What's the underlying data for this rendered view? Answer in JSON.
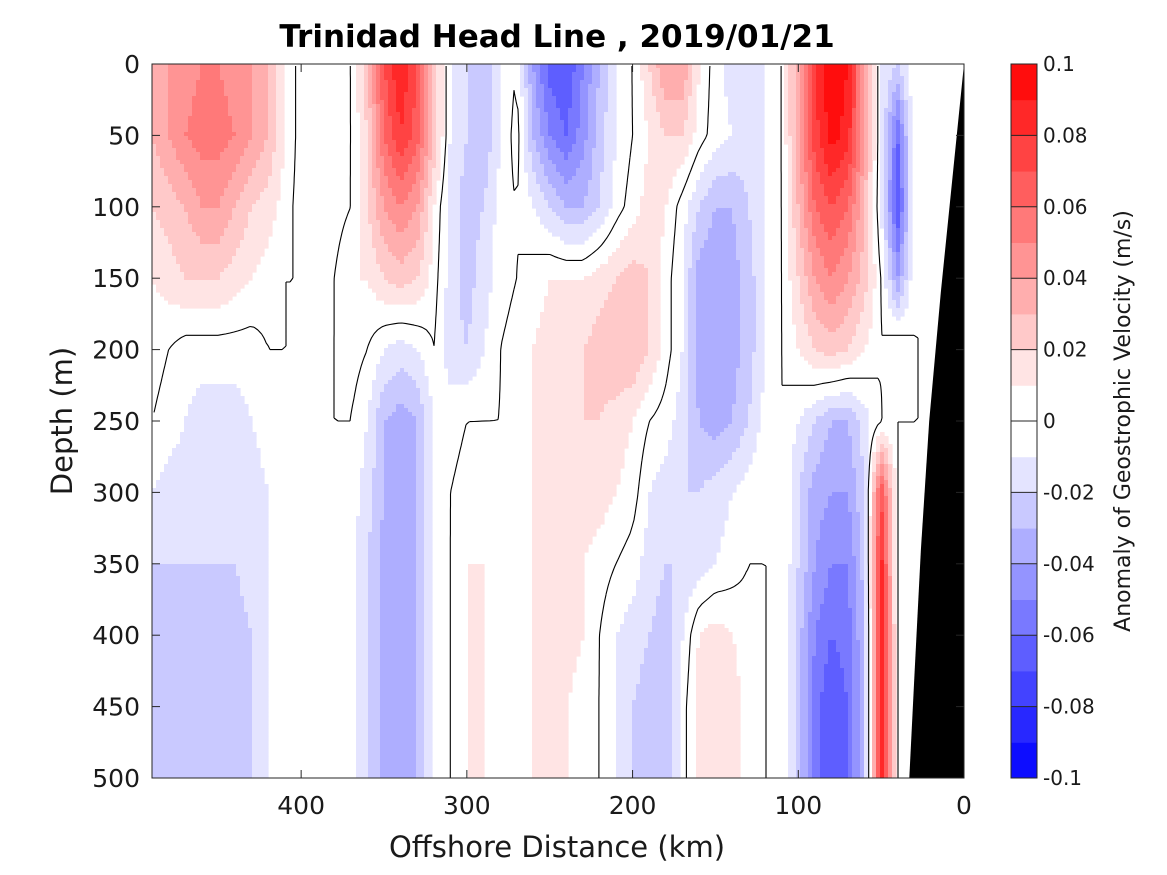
{
  "chart_data": {
    "type": "heatmap",
    "title": "Trinidad Head Line , 2019/01/21",
    "xlabel": "Offshore Distance (km)",
    "ylabel": "Depth (m)",
    "colorbar_label": "Anomaly of Geostrophic Velocity (m/s)",
    "xlim": [
      490,
      0
    ],
    "ylim": [
      0,
      500
    ],
    "x_reversed": true,
    "y_reversed": true,
    "x_ticks": [
      400,
      300,
      200,
      100,
      0
    ],
    "y_ticks": [
      0,
      50,
      100,
      150,
      200,
      250,
      300,
      350,
      400,
      450,
      500
    ],
    "colorbar_ticks": [
      "0.1",
      "0.08",
      "0.06",
      "0.04",
      "0.02",
      "0",
      "-0.02",
      "-0.04",
      "-0.06",
      "-0.08",
      "-0.1"
    ],
    "colorbar_range": [
      -0.1,
      0.1
    ],
    "contour_levels": 20,
    "zero_contour_color": "#000000",
    "bathymetry_color": "#000000",
    "positive_color": "#ff0000",
    "negative_color": "#0000ff",
    "x_grid": [
      490,
      480,
      470,
      460,
      450,
      440,
      430,
      420,
      410,
      400,
      390,
      380,
      370,
      360,
      350,
      340,
      330,
      320,
      310,
      300,
      290,
      280,
      270,
      260,
      250,
      240,
      230,
      220,
      210,
      200,
      190,
      180,
      170,
      160,
      150,
      140,
      130,
      120,
      110,
      100,
      90,
      80,
      70,
      60,
      50,
      40,
      30,
      20,
      10,
      0
    ],
    "depth_grid": [
      0,
      50,
      100,
      150,
      200,
      250,
      300,
      350,
      400,
      450,
      500
    ],
    "velocity_grid": [
      [
        0.03,
        0.04,
        0.045,
        0.05,
        0.05,
        0.045,
        0.04,
        0.03,
        0.01,
        -0.005,
        -0.005,
        -0.01,
        0.0,
        0.03,
        0.07,
        0.09,
        0.07,
        0.03,
        -0.01,
        -0.02,
        -0.03,
        -0.01,
        0.0,
        -0.04,
        -0.065,
        -0.07,
        -0.05,
        -0.03,
        -0.01,
        0.0,
        0.02,
        0.04,
        0.04,
        0.01,
        -0.005,
        -0.015,
        -0.02,
        -0.01,
        0.0,
        0.04,
        0.08,
        0.1,
        0.09,
        0.04,
        -0.01,
        -0.02,
        0.0,
        0.0,
        0.0,
        0.0
      ],
      [
        0.03,
        0.04,
        0.05,
        0.055,
        0.055,
        0.05,
        0.04,
        0.03,
        0.01,
        -0.005,
        -0.01,
        -0.01,
        0.0,
        0.02,
        0.06,
        0.08,
        0.065,
        0.03,
        -0.01,
        -0.02,
        -0.03,
        -0.01,
        0.005,
        -0.03,
        -0.05,
        -0.06,
        -0.045,
        -0.025,
        -0.01,
        0.0,
        0.01,
        0.02,
        0.02,
        0.005,
        -0.005,
        -0.01,
        -0.015,
        -0.01,
        0.0,
        0.04,
        0.075,
        0.095,
        0.085,
        0.04,
        -0.01,
        -0.06,
        0.0,
        0.0,
        0.0,
        0.0
      ],
      [
        0.02,
        0.025,
        0.03,
        0.04,
        0.04,
        0.03,
        0.02,
        0.015,
        0.005,
        -0.005,
        -0.01,
        -0.005,
        0.0,
        0.02,
        0.04,
        0.05,
        0.04,
        0.01,
        -0.015,
        -0.025,
        -0.02,
        -0.005,
        0.0,
        -0.01,
        -0.02,
        -0.03,
        -0.03,
        -0.02,
        -0.005,
        0.005,
        0.015,
        0.01,
        -0.005,
        -0.02,
        -0.03,
        -0.03,
        -0.02,
        -0.01,
        0.0,
        0.03,
        0.06,
        0.07,
        0.06,
        0.03,
        -0.01,
        -0.07,
        0.0,
        0.0,
        0.0,
        0.0
      ],
      [
        0.01,
        0.015,
        0.02,
        0.02,
        0.02,
        0.015,
        0.01,
        0.005,
        0.0,
        0.0,
        -0.005,
        0.0,
        0.01,
        0.01,
        0.02,
        0.025,
        0.02,
        0.005,
        -0.015,
        -0.025,
        -0.015,
        -0.005,
        0.0,
        0.005,
        0.01,
        0.01,
        0.01,
        0.015,
        0.02,
        0.025,
        0.02,
        0.005,
        -0.01,
        -0.035,
        -0.04,
        -0.035,
        -0.025,
        -0.01,
        0.0,
        0.02,
        0.04,
        0.05,
        0.04,
        0.025,
        0.0,
        -0.04,
        0.0,
        0.0,
        0.0,
        0.0
      ],
      [
        0.005,
        0.0,
        -0.005,
        -0.005,
        -0.005,
        -0.005,
        -0.005,
        0.0,
        0.0,
        0.0,
        0.0,
        0.0,
        0.005,
        0.0,
        -0.01,
        -0.015,
        -0.01,
        0.0,
        -0.015,
        -0.02,
        -0.01,
        0.0,
        0.005,
        0.01,
        0.015,
        0.015,
        0.02,
        0.025,
        0.03,
        0.03,
        0.02,
        0.005,
        -0.01,
        -0.035,
        -0.04,
        -0.035,
        -0.025,
        -0.01,
        0.0,
        0.01,
        0.02,
        0.025,
        0.02,
        0.01,
        0.0,
        0.01,
        0.0,
        0.0,
        0.0,
        0.0
      ],
      [
        0.0,
        -0.005,
        -0.01,
        -0.015,
        -0.015,
        -0.015,
        -0.01,
        -0.005,
        0.0,
        0.0,
        0.0,
        0.0,
        0.0,
        -0.01,
        -0.03,
        -0.035,
        -0.03,
        -0.01,
        -0.005,
        0.0,
        0.0,
        0.0,
        0.005,
        0.01,
        0.015,
        0.02,
        0.02,
        0.02,
        0.015,
        0.01,
        0.0,
        -0.005,
        -0.015,
        -0.03,
        -0.035,
        -0.03,
        -0.02,
        -0.005,
        0.0,
        -0.01,
        -0.02,
        -0.03,
        -0.03,
        -0.015,
        0.0,
        0.0,
        0.0,
        0.0,
        0.0,
        0.0
      ],
      [
        -0.01,
        -0.015,
        -0.015,
        -0.015,
        -0.015,
        -0.015,
        -0.015,
        -0.01,
        0.0,
        0.0,
        0.0,
        0.0,
        -0.005,
        -0.015,
        -0.03,
        -0.035,
        -0.03,
        -0.01,
        0.0,
        0.005,
        0.01,
        0.005,
        0.005,
        0.01,
        0.015,
        0.015,
        0.015,
        0.015,
        0.01,
        0.005,
        -0.01,
        -0.015,
        -0.02,
        -0.02,
        -0.015,
        -0.01,
        -0.005,
        0.0,
        0.0,
        -0.02,
        -0.035,
        -0.04,
        -0.04,
        -0.02,
        0.07,
        0.0,
        0.0,
        0.0,
        0.0,
        0.0
      ],
      [
        -0.02,
        -0.02,
        -0.02,
        -0.02,
        -0.02,
        -0.02,
        -0.015,
        -0.01,
        0.0,
        0.0,
        0.0,
        0.0,
        -0.005,
        -0.02,
        -0.035,
        -0.04,
        -0.03,
        -0.01,
        0.0,
        0.01,
        0.01,
        0.005,
        0.005,
        0.01,
        0.015,
        0.015,
        0.01,
        0.005,
        0.0,
        -0.005,
        -0.015,
        -0.02,
        -0.02,
        -0.015,
        -0.01,
        -0.005,
        0.0,
        0.0,
        0.0,
        -0.02,
        -0.04,
        -0.05,
        -0.05,
        -0.025,
        0.085,
        0.0,
        0.0,
        0.0,
        0.0,
        0.0
      ],
      [
        -0.025,
        -0.025,
        -0.025,
        -0.03,
        -0.03,
        -0.025,
        -0.02,
        -0.01,
        0.0,
        0.0,
        0.0,
        0.0,
        -0.005,
        -0.02,
        -0.035,
        -0.04,
        -0.03,
        -0.01,
        0.0,
        0.01,
        0.01,
        0.005,
        0.005,
        0.01,
        0.02,
        0.015,
        0.01,
        0.0,
        -0.01,
        -0.015,
        -0.02,
        -0.025,
        -0.01,
        0.01,
        0.015,
        0.01,
        0.005,
        0.0,
        0.0,
        -0.025,
        -0.05,
        -0.06,
        -0.055,
        -0.03,
        0.09,
        0.0,
        0.0,
        0.0,
        0.0,
        0.0
      ],
      [
        -0.03,
        -0.03,
        -0.025,
        -0.03,
        -0.03,
        -0.03,
        -0.02,
        -0.01,
        0.0,
        0.0,
        0.0,
        0.0,
        -0.005,
        -0.02,
        -0.035,
        -0.04,
        -0.03,
        -0.01,
        0.0,
        0.01,
        0.01,
        0.005,
        0.005,
        0.01,
        0.015,
        0.01,
        0.005,
        0.0,
        -0.01,
        -0.02,
        -0.025,
        -0.03,
        -0.005,
        0.015,
        0.02,
        0.015,
        0.005,
        0.0,
        0.0,
        -0.025,
        -0.055,
        -0.07,
        -0.06,
        -0.03,
        0.09,
        0.0,
        0.0,
        0.0,
        0.0,
        0.0
      ],
      [
        -0.03,
        -0.03,
        -0.025,
        -0.03,
        -0.03,
        -0.03,
        -0.02,
        -0.01,
        0.0,
        0.0,
        0.0,
        0.0,
        -0.005,
        -0.02,
        -0.035,
        -0.04,
        -0.03,
        -0.01,
        0.0,
        0.01,
        0.01,
        0.005,
        0.005,
        0.01,
        0.01,
        0.01,
        0.005,
        0.0,
        -0.01,
        -0.02,
        -0.025,
        -0.03,
        -0.005,
        0.015,
        0.02,
        0.015,
        0.005,
        0.0,
        0.0,
        -0.025,
        -0.055,
        -0.07,
        -0.06,
        -0.03,
        0.09,
        0.0,
        0.0,
        0.0,
        0.0,
        0.0
      ]
    ],
    "bottom_profile": [
      [
        0,
        0
      ],
      [
        7,
        80
      ],
      [
        14,
        160
      ],
      [
        21,
        250
      ],
      [
        26,
        340
      ],
      [
        30,
        430
      ],
      [
        33,
        500
      ]
    ]
  }
}
